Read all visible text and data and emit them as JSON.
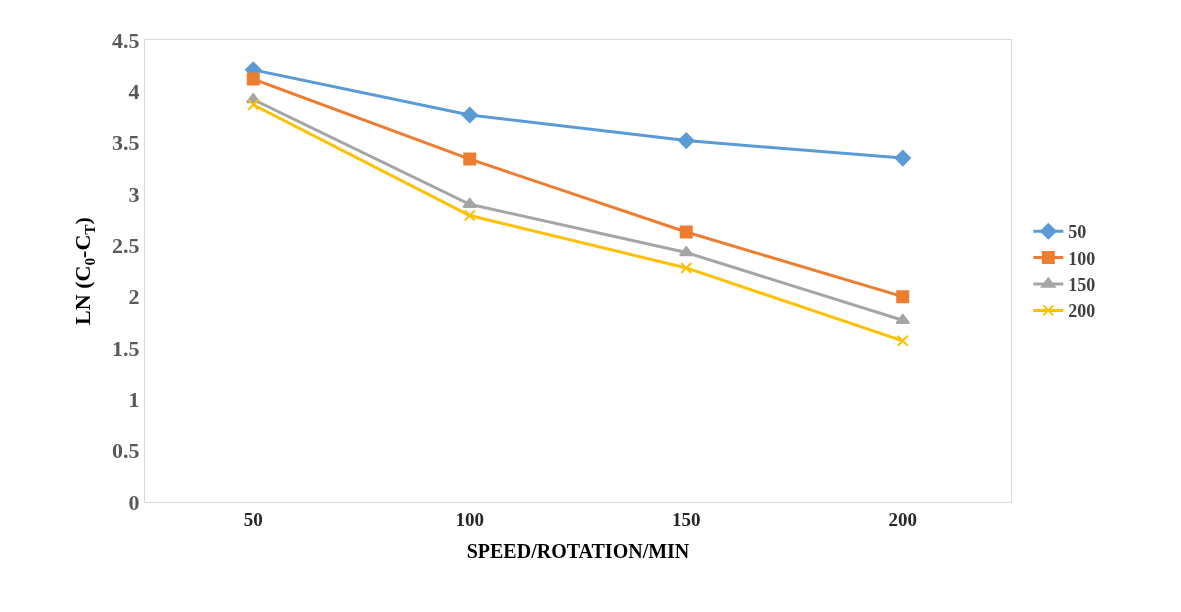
{
  "chart_data": {
    "type": "line",
    "xlabel": "SPEED/ROTATION/MIN",
    "ylabel": "LN (C$_{0}$-C$_{T}$)",
    "categories": [
      "50",
      "100",
      "150",
      "200"
    ],
    "ylim": [
      0,
      4.5
    ],
    "yticks": [
      0,
      0.5,
      1,
      1.5,
      2,
      2.5,
      3,
      3.5,
      4,
      4.5
    ],
    "legend": "right",
    "series": [
      {
        "name": "50",
        "color": "#5b9bd5",
        "marker": "diamond",
        "values": [
          4.21,
          3.77,
          3.52,
          3.35
        ]
      },
      {
        "name": "100",
        "color": "#ed7d31",
        "marker": "square",
        "values": [
          4.12,
          3.34,
          2.63,
          2.0
        ]
      },
      {
        "name": "150",
        "color": "#a5a5a5",
        "marker": "triangle",
        "values": [
          3.92,
          2.9,
          2.43,
          1.77
        ]
      },
      {
        "name": "200",
        "color": "#ffc000",
        "marker": "cross",
        "values": [
          3.87,
          2.79,
          2.28,
          1.57
        ]
      }
    ]
  }
}
